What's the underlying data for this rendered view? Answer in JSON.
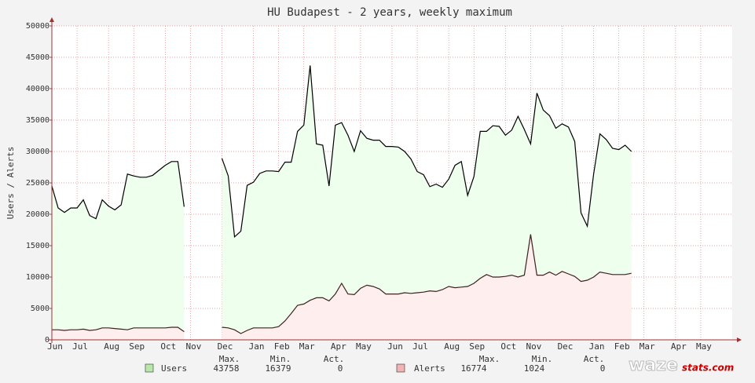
{
  "chart_data": {
    "type": "area",
    "title": "HU Budapest - 2 years, weekly maximum",
    "y_label": "Users / Alerts",
    "categories": [
      "Jun",
      null,
      null,
      null,
      "Jul",
      null,
      null,
      null,
      null,
      "Aug",
      null,
      null,
      null,
      "Sep",
      null,
      null,
      null,
      null,
      "Oct",
      null,
      null,
      null,
      "Nov",
      null,
      null,
      null,
      null,
      "Dec",
      null,
      null,
      null,
      null,
      "Jan",
      null,
      null,
      null,
      "Feb",
      null,
      null,
      null,
      "Mar",
      null,
      null,
      null,
      null,
      "Apr",
      null,
      null,
      null,
      "May",
      null,
      null,
      null,
      null,
      "Jun",
      null,
      null,
      null,
      "Jul",
      null,
      null,
      null,
      null,
      "Aug",
      null,
      null,
      null,
      "Sep",
      null,
      null,
      null,
      null,
      "Oct",
      null,
      null,
      null,
      "Nov",
      null,
      null,
      null,
      null,
      "Dec",
      null,
      null,
      null,
      null,
      "Jan",
      null,
      null,
      null,
      "Feb",
      null,
      null,
      null,
      "Mar",
      null,
      null,
      null,
      null,
      "Apr",
      null,
      null,
      null,
      "May",
      null,
      null,
      null,
      null
    ],
    "series": [
      {
        "name": "Users",
        "color": "#000000",
        "fill": "#eeffee",
        "swatch": "#b8e8a8",
        "max": 43758,
        "min": 16379,
        "act": 0,
        "values": [
          24500,
          21000,
          20300,
          21000,
          21000,
          22300,
          19800,
          19300,
          22300,
          21300,
          20700,
          21500,
          26400,
          26100,
          25900,
          25900,
          26200,
          27000,
          27800,
          28400,
          28400,
          21200,
          null,
          null,
          null,
          null,
          null,
          28900,
          26100,
          16400,
          17300,
          24600,
          25100,
          26500,
          26900,
          26900,
          26800,
          28300,
          28300,
          33200,
          34200,
          43700,
          31200,
          31000,
          24500,
          34200,
          34600,
          32600,
          30000,
          33300,
          32100,
          31800,
          31800,
          30800,
          30800,
          30700,
          30000,
          28800,
          26800,
          26300,
          24400,
          24800,
          24300,
          25600,
          27800,
          28400,
          23000,
          26000,
          33200,
          33200,
          34100,
          34000,
          32600,
          33400,
          35600,
          33500,
          31200,
          39300,
          36600,
          35700,
          33700,
          34400,
          33900,
          31600,
          20200,
          18100,
          26400,
          32800,
          31900,
          30500,
          30300,
          31000,
          30000,
          null,
          null,
          null,
          null,
          null,
          null,
          null,
          null,
          null,
          null,
          null,
          null,
          null,
          null,
          null
        ]
      },
      {
        "name": "Alerts",
        "color": "#402020",
        "fill": "#ffeeee",
        "swatch": "#f0b4b4",
        "max": 16774,
        "min": 1024,
        "act": 0,
        "values": [
          1600,
          1600,
          1500,
          1600,
          1600,
          1700,
          1500,
          1600,
          1900,
          1900,
          1800,
          1700,
          1600,
          1900,
          1900,
          1900,
          1900,
          1900,
          1900,
          2000,
          2000,
          1300,
          null,
          null,
          null,
          null,
          null,
          2000,
          1900,
          1600,
          1000,
          1500,
          1900,
          1900,
          1900,
          1900,
          2100,
          3000,
          4200,
          5500,
          5700,
          6300,
          6700,
          6700,
          6200,
          7300,
          9000,
          7300,
          7200,
          8200,
          8700,
          8500,
          8100,
          7300,
          7300,
          7300,
          7500,
          7400,
          7500,
          7600,
          7800,
          7700,
          8000,
          8500,
          8300,
          8400,
          8500,
          9000,
          9800,
          10400,
          10000,
          10000,
          10100,
          10300,
          10000,
          10300,
          16800,
          10300,
          10300,
          10800,
          10300,
          10900,
          10500,
          10100,
          9300,
          9500,
          10000,
          10800,
          10600,
          10400,
          10400,
          10400,
          10600,
          null,
          null,
          null,
          null,
          null,
          null,
          null,
          null,
          null,
          null,
          null,
          null,
          null,
          null,
          null
        ]
      }
    ],
    "stat_labels": [
      "Max.",
      "Min.",
      "Act."
    ],
    "ylim": [
      0,
      50000
    ],
    "yticks": [
      0,
      5000,
      10000,
      15000,
      20000,
      25000,
      30000,
      35000,
      40000,
      45000,
      50000
    ],
    "grid": true,
    "logo": [
      "waze",
      "stats.com"
    ]
  }
}
